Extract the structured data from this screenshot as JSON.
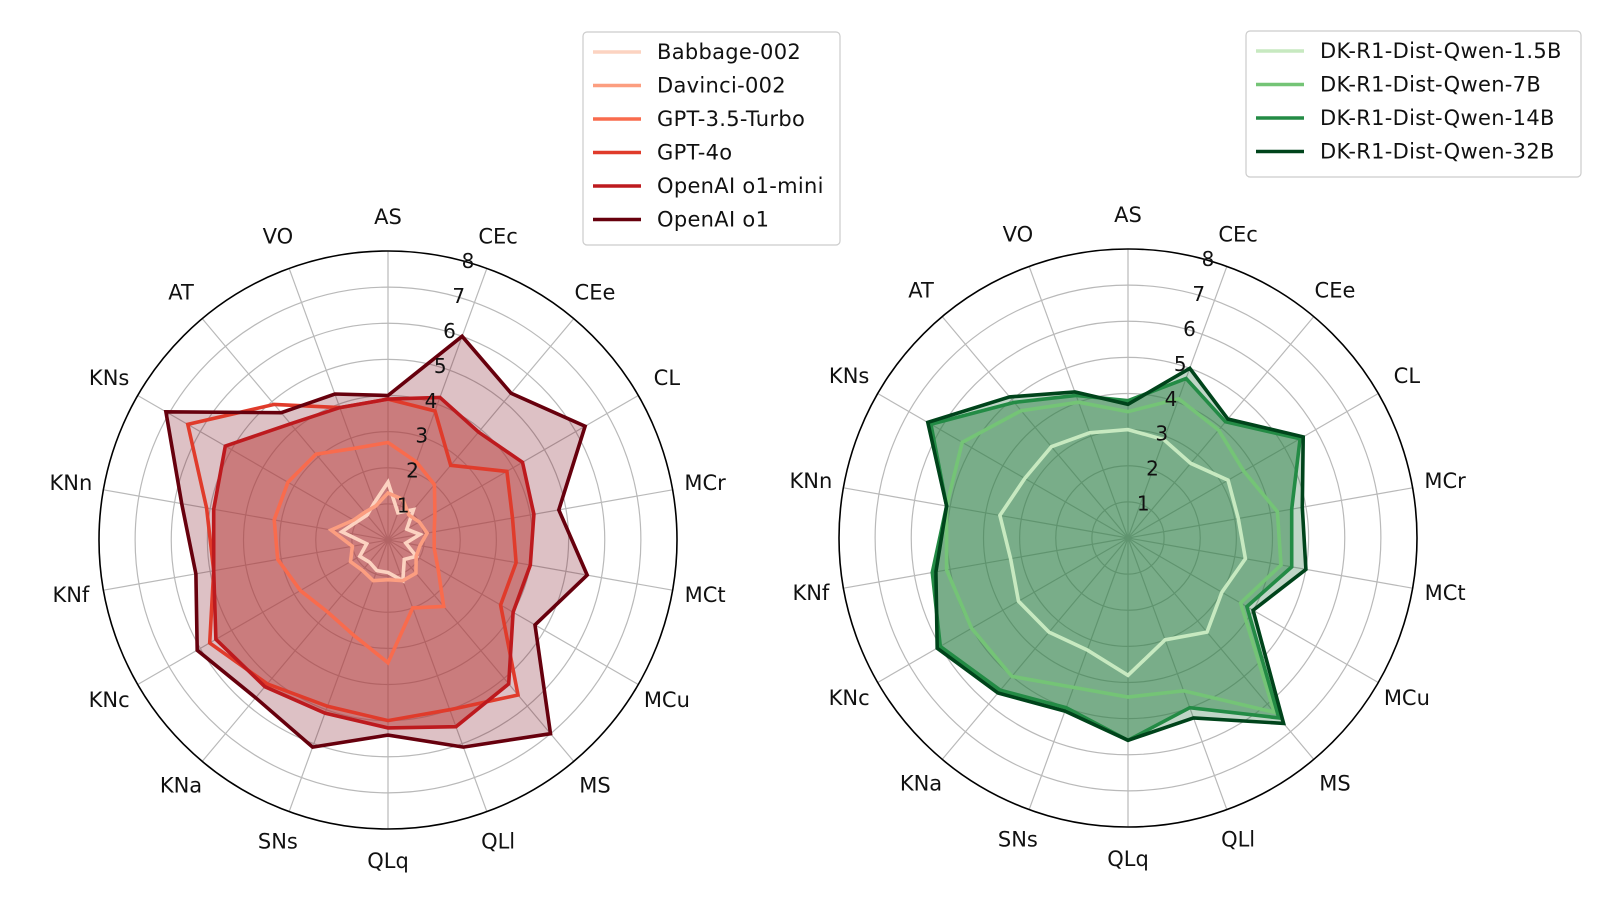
{
  "chart_data": [
    {
      "type": "radar",
      "title": "",
      "rmax": 8,
      "r_ticks": [
        1,
        2,
        3,
        4,
        5,
        6,
        7,
        8
      ],
      "grid": true,
      "legend_position": "top-right",
      "axes": [
        "AS",
        "CEc",
        "CEe",
        "CL",
        "MCr",
        "MCt",
        "MCu",
        "MS",
        "QLl",
        "QLq",
        "SNs",
        "KNa",
        "KNc",
        "KNf",
        "KNn",
        "KNs",
        "AT",
        "VO"
      ],
      "series": [
        {
          "name": "Babbage-002",
          "color": "#fcd3c1",
          "fill": false,
          "values": [
            1.6,
            0.8,
            1.1,
            0.6,
            0.9,
            0.5,
            0.9,
            0.7,
            1.2,
            0.9,
            0.9,
            0.8,
            0.9,
            0.6,
            1.3,
            1.0,
            0.9,
            1.1
          ]
        },
        {
          "name": "Davinci-002",
          "color": "#fc9e80",
          "fill": false,
          "values": [
            1.3,
            1.2,
            0.9,
            1.0,
            1.1,
            0.9,
            0.9,
            1.2,
            1.2,
            1.1,
            1.2,
            1.1,
            1.2,
            1.0,
            1.6,
            1.1,
            1.0,
            1.0
          ]
        },
        {
          "name": "GPT-3.5-Turbo",
          "color": "#f96b4d",
          "fill": false,
          "values": [
            2.7,
            2.3,
            2.0,
            1.5,
            1.3,
            1.3,
            1.6,
            2.4,
            2.0,
            3.4,
            2.8,
            2.6,
            2.8,
            3.1,
            3.2,
            3.2,
            3.1,
            2.7
          ]
        },
        {
          "name": "GPT-4o",
          "color": "#e03b2b",
          "fill": false,
          "values": [
            3.9,
            3.8,
            2.7,
            3.8,
            3.5,
            3.6,
            3.6,
            5.6,
            5.0,
            5.0,
            4.9,
            5.2,
            5.7,
            4.9,
            5.1,
            6.4,
            4.9,
            3.9
          ]
        },
        {
          "name": "OpenAI o1-mini",
          "color": "#bd1a1e",
          "fill": true,
          "fill_color": "#d2564f",
          "fill_opacity": 0.55,
          "values": [
            3.9,
            4.2,
            3.9,
            4.3,
            4.1,
            4.0,
            4.0,
            5.2,
            5.5,
            5.2,
            5.1,
            5.3,
            5.5,
            4.9,
            4.9,
            5.2,
            4.2,
            3.9
          ]
        },
        {
          "name": "OpenAI o1",
          "color": "#67000d",
          "fill": true,
          "fill_color": "#7a1020",
          "fill_opacity": 0.26,
          "values": [
            4.0,
            6.0,
            5.3,
            6.3,
            4.8,
            5.6,
            4.7,
            7.0,
            6.1,
            5.4,
            6.1,
            5.7,
            6.1,
            5.4,
            5.8,
            7.1,
            4.6,
            4.3
          ]
        }
      ]
    },
    {
      "type": "radar",
      "title": "",
      "rmax": 8,
      "r_ticks": [
        1,
        2,
        3,
        4,
        5,
        6,
        7,
        8
      ],
      "grid": true,
      "legend_position": "top-right",
      "axes": [
        "AS",
        "CEc",
        "CEe",
        "CL",
        "MCr",
        "MCt",
        "MCu",
        "MS",
        "QLl",
        "QLq",
        "SNs",
        "KNa",
        "KNc",
        "KNf",
        "KNn",
        "KNs",
        "AT",
        "VO"
      ],
      "series": [
        {
          "name": "DK-R1-Dist-Qwen-1.5B",
          "color": "#c7e9c0",
          "fill": false,
          "values": [
            3.0,
            2.9,
            2.7,
            3.2,
            3.1,
            3.3,
            3.0,
            3.4,
            3.0,
            3.8,
            3.3,
            3.4,
            3.5,
            3.3,
            3.6,
            3.3,
            3.3,
            3.1
          ]
        },
        {
          "name": "DK-R1-Dist-Qwen-7B",
          "color": "#74c476",
          "fill": false,
          "values": [
            3.5,
            4.1,
            3.9,
            3.7,
            4.2,
            4.3,
            3.6,
            6.3,
            4.5,
            4.4,
            4.4,
            5.0,
            5.0,
            5.1,
            5.1,
            5.3,
            4.6,
            4.0
          ]
        },
        {
          "name": "DK-R1-Dist-Qwen-14B",
          "color": "#238b45",
          "fill": true,
          "fill_color": "#3b8f54",
          "fill_opacity": 0.5,
          "values": [
            3.8,
            4.7,
            4.2,
            5.5,
            4.6,
            4.6,
            3.8,
            6.5,
            5.0,
            5.6,
            5.0,
            5.5,
            6.0,
            5.5,
            5.1,
            6.3,
            4.9,
            4.2
          ]
        },
        {
          "name": "DK-R1-Dist-Qwen-32B",
          "color": "#00441b",
          "fill": true,
          "fill_color": "#1e6b35",
          "fill_opacity": 0.28,
          "values": [
            3.7,
            5.0,
            4.3,
            5.6,
            4.9,
            5.0,
            4.0,
            6.7,
            5.3,
            5.6,
            5.1,
            5.6,
            6.1,
            5.4,
            5.1,
            6.4,
            5.1,
            4.3
          ]
        }
      ]
    }
  ]
}
